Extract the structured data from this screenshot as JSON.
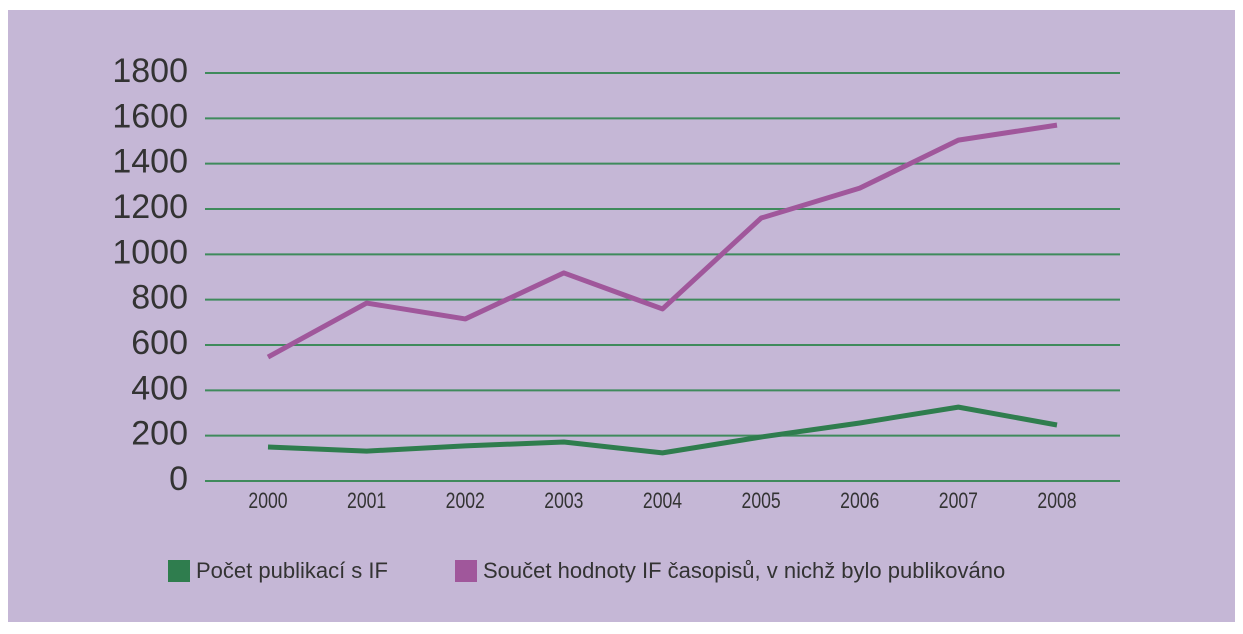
{
  "chart_data": {
    "type": "line",
    "categories": [
      "2000",
      "2001",
      "2002",
      "2003",
      "2004",
      "2005",
      "2006",
      "2007",
      "2008"
    ],
    "series": [
      {
        "name": "Počet publikací s IF",
        "color": "#2f7d4e",
        "values": [
          150,
          132,
          155,
          172,
          124,
          194,
          256,
          326,
          247
        ]
      },
      {
        "name": "Součet hodnoty IF časopisů, v nichž bylo publikováno",
        "color": "#a0579b",
        "values": [
          547,
          785,
          715,
          918,
          759,
          1160,
          1292,
          1504,
          1570
        ]
      }
    ],
    "ylim": [
      0,
      1800
    ],
    "yticks": [
      0,
      200,
      400,
      600,
      800,
      1000,
      1200,
      1400,
      1600,
      1800
    ],
    "grid": true,
    "legend": "bottom"
  }
}
